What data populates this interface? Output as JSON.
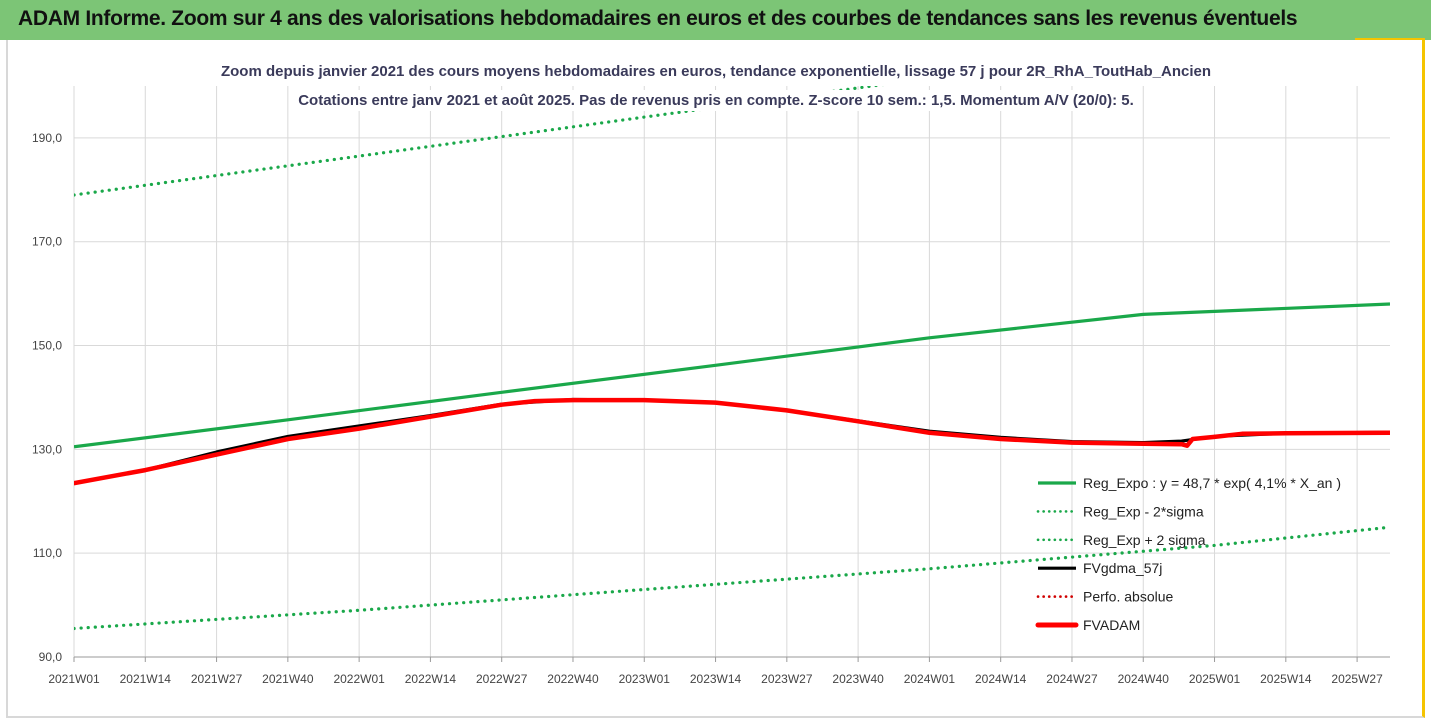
{
  "banner": {
    "title": "ADAM Informe. Zoom sur 4 ans des valorisations hebdomadaires en euros et des courbes de tendances sans les revenus éventuels"
  },
  "colors": {
    "banner_bg": "#7cc576",
    "trend_green": "#1aa84a",
    "fvadam_red": "#ff0000",
    "perf_red": "#d00000",
    "fvgdma_black": "#000000",
    "frame_accent": "#f5c400"
  },
  "chart_data": {
    "type": "line",
    "title": [
      "Zoom depuis janvier 2021 des cours moyens hebdomadaires en euros, tendance exponentielle, lissage 57 j pour 2R_RhA_ToutHab_Ancien",
      "Cotations entre janv 2021 et août 2025.  Pas de revenus pris en compte. Z-score 10 sem.: 1,5. Momentum A/V (20/0): 5."
    ],
    "x_ticks": [
      "2021W01",
      "2021W14",
      "2021W27",
      "2021W40",
      "2022W01",
      "2022W14",
      "2022W27",
      "2022W40",
      "2023W01",
      "2023W14",
      "2023W27",
      "2023W40",
      "2024W01",
      "2024W14",
      "2024W27",
      "2024W40",
      "2025W01",
      "2025W14",
      "2025W27"
    ],
    "x_range": [
      0,
      240
    ],
    "y_ticks": [
      "90,0",
      "110,0",
      "130,0",
      "150,0",
      "170,0",
      "190,0"
    ],
    "ylim": [
      90,
      200
    ],
    "grid": "vertical and horizontal",
    "legend_position": "bottom-right",
    "series": [
      {
        "name": "Reg_Expo : y = 48,7 * exp( 4,1% *  X_an )",
        "style": "solid",
        "color": "#1aa84a",
        "x": [
          0,
          39,
          78,
          117,
          156,
          195,
          240
        ],
        "y": [
          130.5,
          135.7,
          141.0,
          146.2,
          151.5,
          156.0,
          158.0
        ]
      },
      {
        "name": "Reg_Exp - 2*sigma",
        "style": "dotted",
        "color": "#1aa84a",
        "x": [
          0,
          52,
          104,
          156,
          200,
          240
        ],
        "y": [
          179,
          186.5,
          194,
          201.5,
          207.5,
          212
        ]
      },
      {
        "name": "Reg_Exp + 2 sigma",
        "style": "dotted",
        "color": "#1aa84a",
        "x": [
          0,
          52,
          104,
          156,
          208,
          240
        ],
        "y": [
          95.5,
          99.0,
          103.0,
          107.0,
          111.5,
          115.0
        ]
      },
      {
        "name": "FVgdma_57j",
        "style": "solid",
        "color": "#000000",
        "x": [
          0,
          13,
          26,
          39,
          52,
          65,
          78,
          91,
          104,
          117,
          130,
          143,
          156,
          169,
          182,
          195,
          202,
          208,
          221,
          240
        ],
        "y": [
          123.5,
          126.0,
          129.5,
          132.5,
          134.5,
          136.5,
          138.7,
          139.6,
          139.5,
          139.0,
          137.5,
          135.5,
          133.5,
          132.3,
          131.5,
          131.3,
          131.6,
          132.5,
          133.1,
          133.3
        ]
      },
      {
        "name": "Perfo. absolue",
        "style": "dotted",
        "color": "#d00000",
        "x": [],
        "y": []
      },
      {
        "name": "FVADAM",
        "style": "solid-thick",
        "color": "#ff0000",
        "x": [
          0,
          13,
          26,
          39,
          52,
          65,
          78,
          84,
          91,
          104,
          117,
          130,
          143,
          156,
          169,
          182,
          195,
          202,
          203,
          204,
          208,
          213,
          221,
          240
        ],
        "y": [
          123.5,
          126.0,
          129.0,
          132.0,
          134.0,
          136.3,
          138.6,
          139.3,
          139.5,
          139.5,
          139.0,
          137.5,
          135.4,
          133.2,
          132.0,
          131.3,
          131.1,
          131.0,
          130.7,
          132.0,
          132.4,
          133.0,
          133.1,
          133.2
        ]
      }
    ]
  }
}
